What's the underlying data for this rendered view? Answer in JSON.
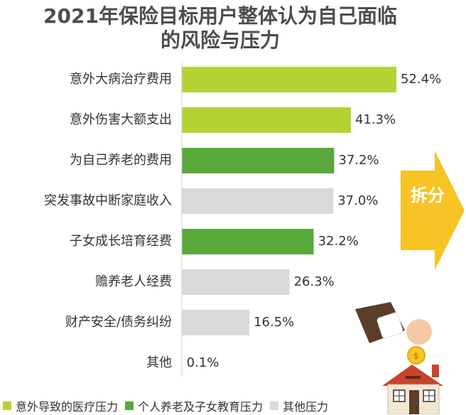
{
  "title": "2021年保险目标用户整体认为自己面临的风险与压力",
  "side_badge": "拆分",
  "colors": {
    "medical": "#b4d233",
    "family": "#58a83a",
    "other": "#d9d9d9",
    "arrow": "#f7c325"
  },
  "legend": [
    {
      "label": "意外导致的医疗压力",
      "color": "#b4d233"
    },
    {
      "label": "个人养老及子女教育压力",
      "color": "#58a83a"
    },
    {
      "label": "其他压力",
      "color": "#d9d9d9"
    }
  ],
  "chart_data": {
    "type": "bar",
    "orientation": "horizontal",
    "title": "2021年保险目标用户整体认为自己面临的风险与压力",
    "categories": [
      "意外大病治疗费用",
      "意外伤害大额支出",
      "为自己养老的费用",
      "突发事故中断家庭收入",
      "子女成长培育经费",
      "赡养老人经费",
      "财产安全/债务纠纷",
      "其他"
    ],
    "values": [
      52.4,
      41.3,
      37.2,
      37.0,
      32.2,
      26.3,
      16.5,
      0.1
    ],
    "value_labels": [
      "52.4%",
      "41.3%",
      "37.2%",
      "37.0%",
      "32.2%",
      "26.3%",
      "16.5%",
      "0.1%"
    ],
    "groups": [
      "意外导致的医疗压力",
      "意外导致的医疗压力",
      "个人养老及子女教育压力",
      "其他压力",
      "个人养老及子女教育压力",
      "其他压力",
      "其他压力",
      "其他压力"
    ],
    "xlim": [
      0,
      52.4
    ],
    "grid": false,
    "legend_position": "bottom"
  }
}
